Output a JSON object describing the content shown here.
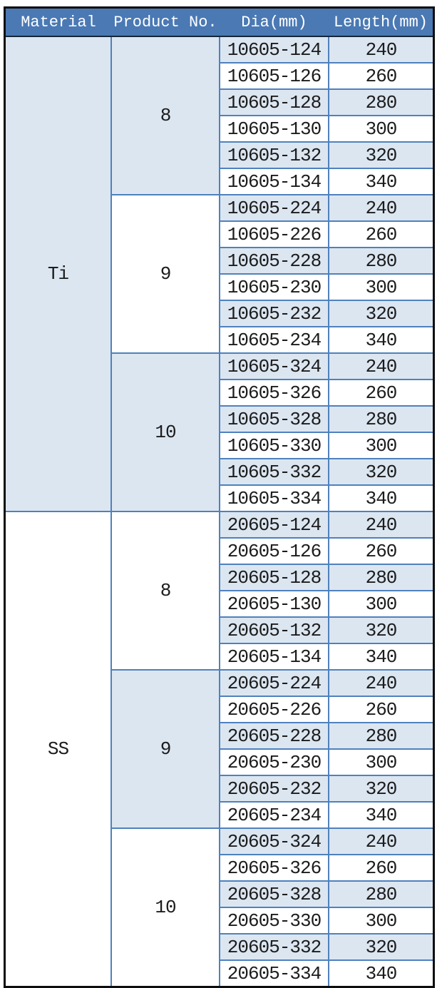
{
  "colors": {
    "header_bg": "#4a79b4",
    "header_text": "#ffffff",
    "band_bg": "#dce6f1",
    "white_bg": "#ffffff",
    "inner_border": "#4f81bd",
    "outer_border": "#0d0d0d",
    "body_text": "#1c1c1c"
  },
  "table": {
    "columns": [
      "Material",
      "Product No.",
      "Dia(mm)",
      "Length(mm)"
    ],
    "materials": [
      {
        "material": "Ti",
        "dia_groups": [
          {
            "dia": "8",
            "rows": [
              {
                "product": "10605-124",
                "length": "240"
              },
              {
                "product": "10605-126",
                "length": "260"
              },
              {
                "product": "10605-128",
                "length": "280"
              },
              {
                "product": "10605-130",
                "length": "300"
              },
              {
                "product": "10605-132",
                "length": "320"
              },
              {
                "product": "10605-134",
                "length": "340"
              }
            ]
          },
          {
            "dia": "9",
            "rows": [
              {
                "product": "10605-224",
                "length": "240"
              },
              {
                "product": "10605-226",
                "length": "260"
              },
              {
                "product": "10605-228",
                "length": "280"
              },
              {
                "product": "10605-230",
                "length": "300"
              },
              {
                "product": "10605-232",
                "length": "320"
              },
              {
                "product": "10605-234",
                "length": "340"
              }
            ]
          },
          {
            "dia": "10",
            "rows": [
              {
                "product": "10605-324",
                "length": "240"
              },
              {
                "product": "10605-326",
                "length": "260"
              },
              {
                "product": "10605-328",
                "length": "280"
              },
              {
                "product": "10605-330",
                "length": "300"
              },
              {
                "product": "10605-332",
                "length": "320"
              },
              {
                "product": "10605-334",
                "length": "340"
              }
            ]
          }
        ]
      },
      {
        "material": "SS",
        "dia_groups": [
          {
            "dia": "8",
            "rows": [
              {
                "product": "20605-124",
                "length": "240"
              },
              {
                "product": "20605-126",
                "length": "260"
              },
              {
                "product": "20605-128",
                "length": "280"
              },
              {
                "product": "20605-130",
                "length": "300"
              },
              {
                "product": "20605-132",
                "length": "320"
              },
              {
                "product": "20605-134",
                "length": "340"
              }
            ]
          },
          {
            "dia": "9",
            "rows": [
              {
                "product": "20605-224",
                "length": "240"
              },
              {
                "product": "20605-226",
                "length": "260"
              },
              {
                "product": "20605-228",
                "length": "280"
              },
              {
                "product": "20605-230",
                "length": "300"
              },
              {
                "product": "20605-232",
                "length": "320"
              },
              {
                "product": "20605-234",
                "length": "340"
              }
            ]
          },
          {
            "dia": "10",
            "rows": [
              {
                "product": "20605-324",
                "length": "240"
              },
              {
                "product": "20605-326",
                "length": "260"
              },
              {
                "product": "20605-328",
                "length": "280"
              },
              {
                "product": "20605-330",
                "length": "300"
              },
              {
                "product": "20605-332",
                "length": "320"
              },
              {
                "product": "20605-334",
                "length": "340"
              }
            ]
          }
        ]
      }
    ]
  }
}
